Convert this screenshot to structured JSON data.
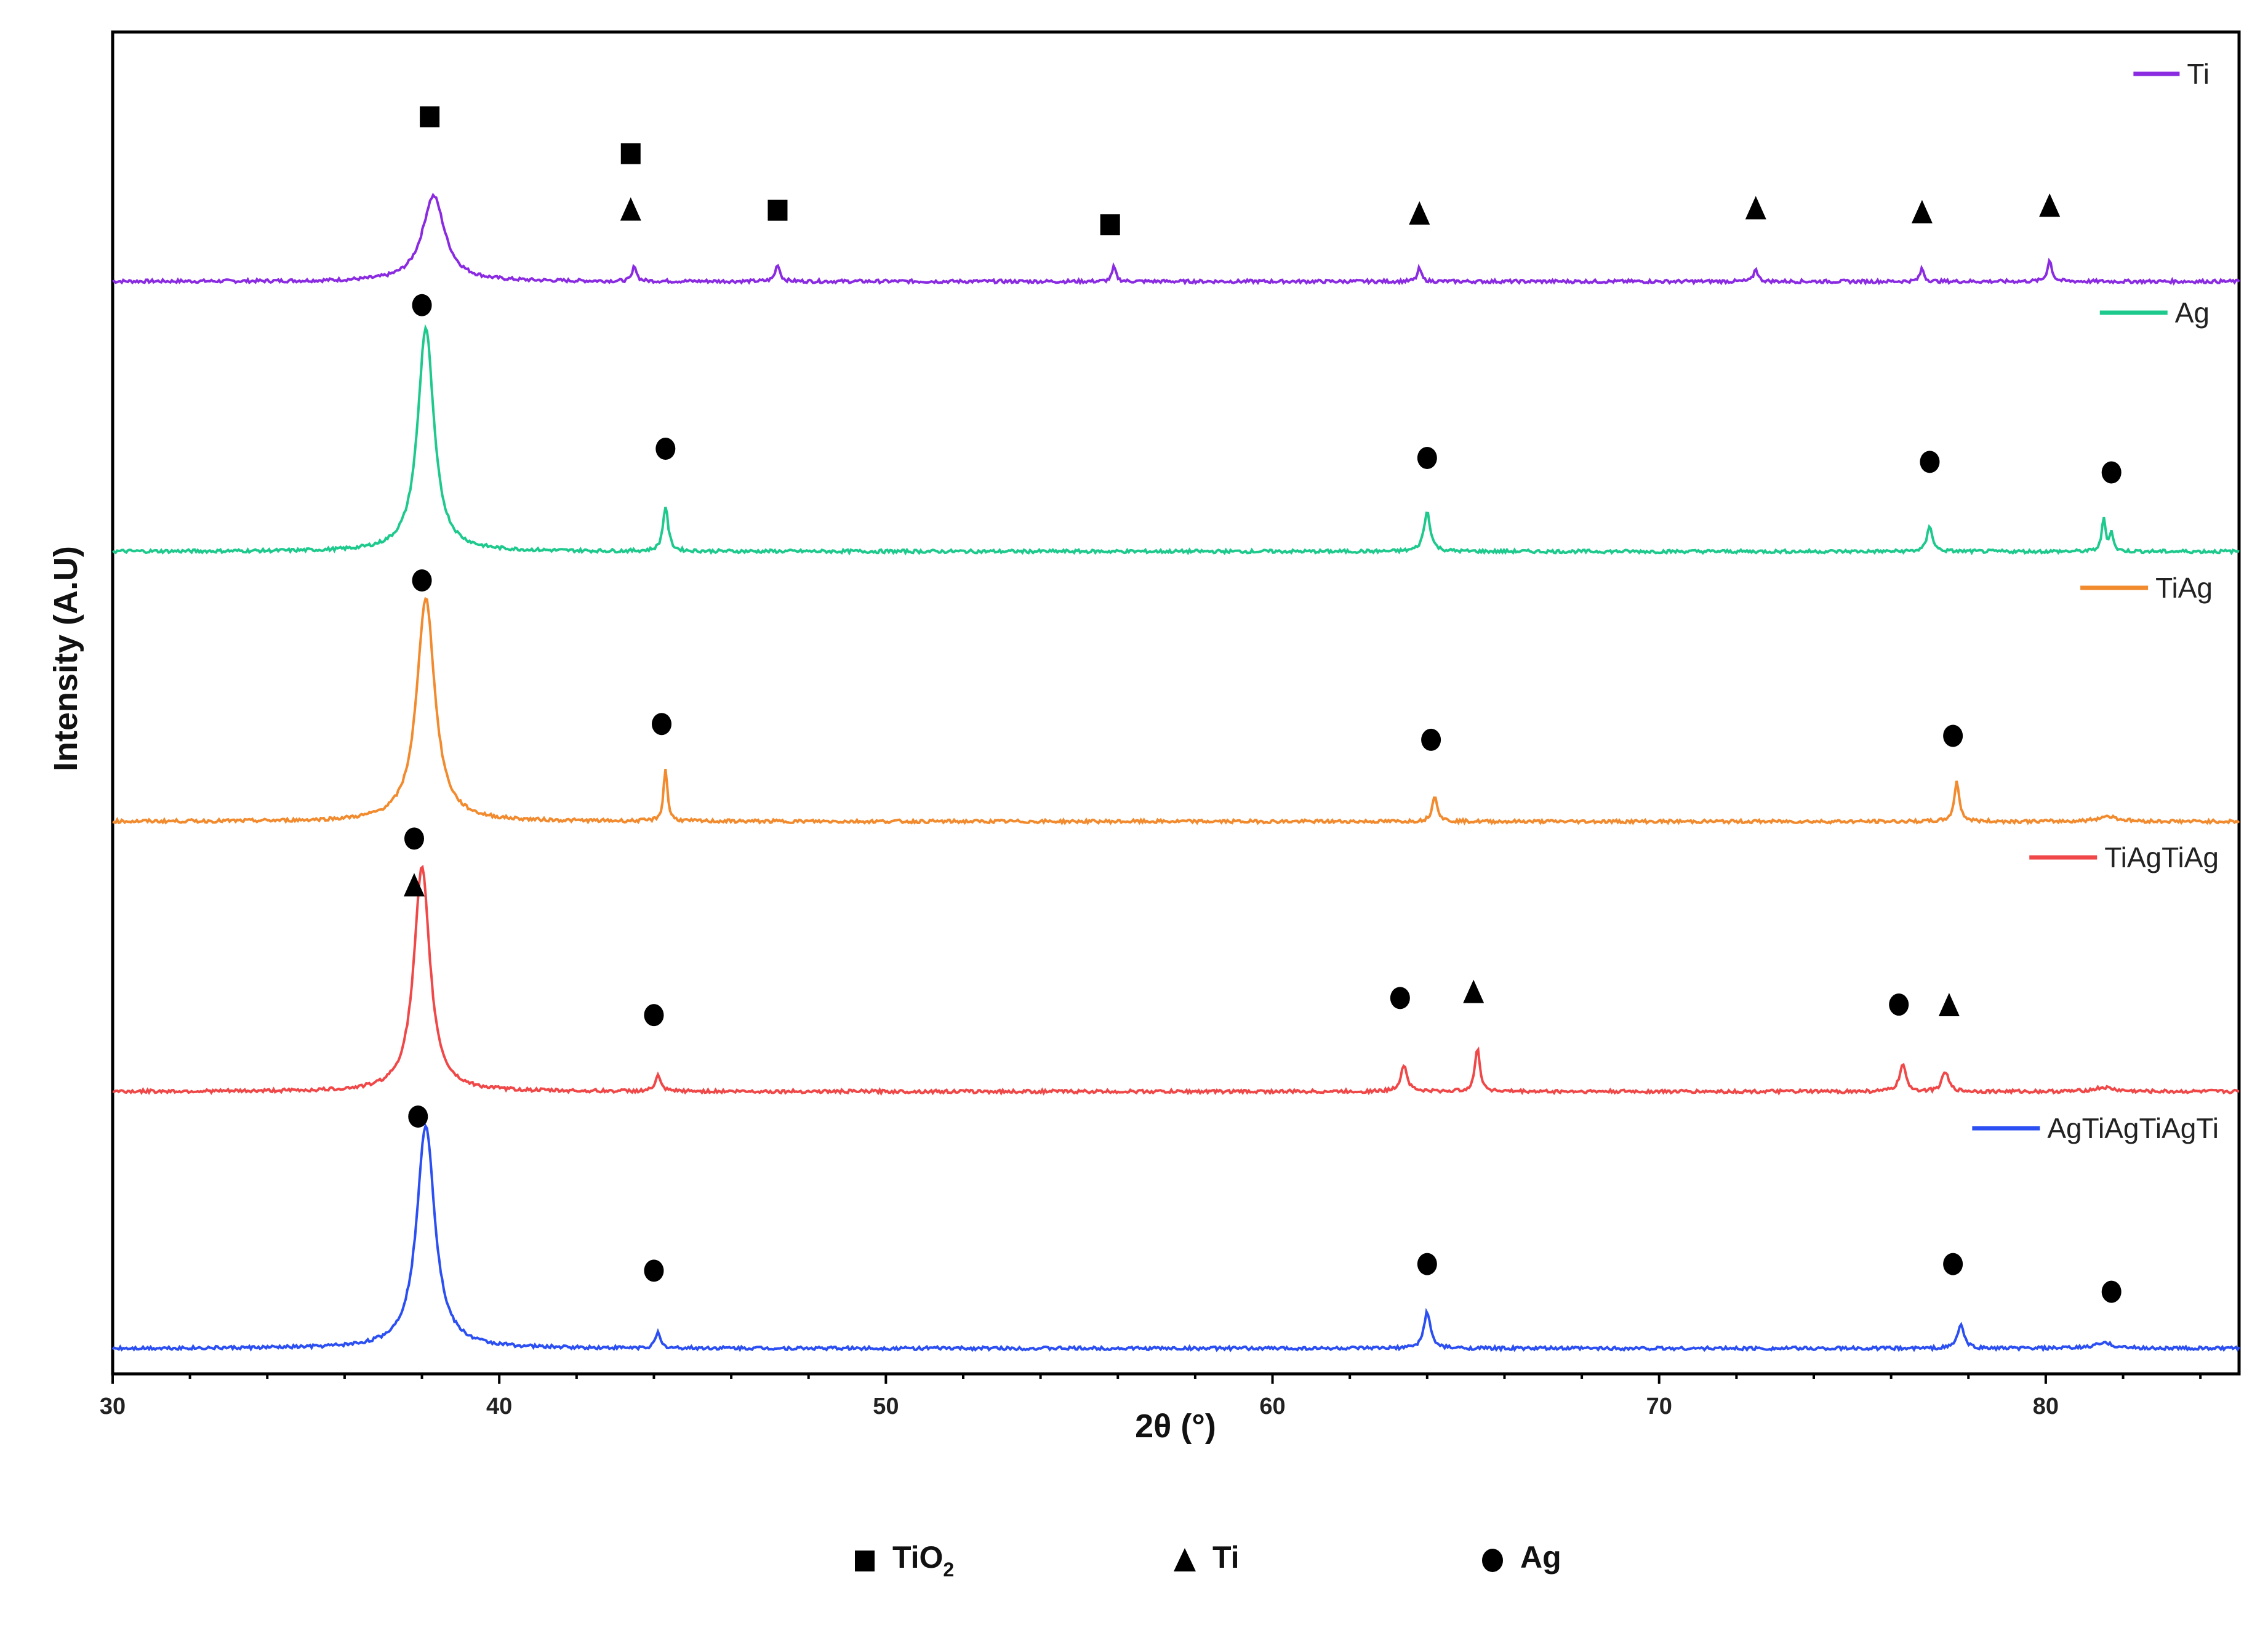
{
  "chart_data": {
    "type": "line",
    "title": "",
    "xlabel": "2θ (°)",
    "ylabel": "Intensity (A.U)",
    "xlim": [
      30,
      85
    ],
    "xticks": [
      30,
      40,
      50,
      60,
      70,
      80
    ],
    "grid": false,
    "legend_position": "right, beside each trace",
    "series": [
      {
        "name": "Ti",
        "color": "#8a2be2",
        "baseline": 0.82,
        "peaks": [
          {
            "x": 38.3,
            "h": 0.065,
            "w": 0.35
          },
          {
            "x": 43.5,
            "h": 0.012,
            "w": 0.06
          },
          {
            "x": 47.2,
            "h": 0.013,
            "w": 0.07
          },
          {
            "x": 55.9,
            "h": 0.011,
            "w": 0.06
          },
          {
            "x": 63.8,
            "h": 0.01,
            "w": 0.06
          },
          {
            "x": 72.5,
            "h": 0.01,
            "w": 0.06
          },
          {
            "x": 76.8,
            "h": 0.01,
            "w": 0.06
          },
          {
            "x": 80.1,
            "h": 0.016,
            "w": 0.07
          }
        ],
        "markers": [
          {
            "x": 38.2,
            "y": 0.945,
            "symbol": "square"
          },
          {
            "x": 43.4,
            "y": 0.917,
            "symbol": "square"
          },
          {
            "x": 43.4,
            "y": 0.875,
            "symbol": "triangle"
          },
          {
            "x": 47.2,
            "y": 0.874,
            "symbol": "square"
          },
          {
            "x": 55.8,
            "y": 0.863,
            "symbol": "square"
          },
          {
            "x": 63.8,
            "y": 0.872,
            "symbol": "triangle"
          },
          {
            "x": 72.5,
            "y": 0.876,
            "symbol": "triangle"
          },
          {
            "x": 76.8,
            "y": 0.873,
            "symbol": "triangle"
          },
          {
            "x": 80.1,
            "y": 0.878,
            "symbol": "triangle"
          }
        ]
      },
      {
        "name": "Ag",
        "color": "#1ec98d",
        "baseline": 0.615,
        "peaks": [
          {
            "x": 38.1,
            "h": 0.17,
            "w": 0.25
          },
          {
            "x": 44.3,
            "h": 0.034,
            "w": 0.08
          },
          {
            "x": 64.0,
            "h": 0.03,
            "w": 0.1
          },
          {
            "x": 77.0,
            "h": 0.02,
            "w": 0.08
          },
          {
            "x": 81.5,
            "h": 0.025,
            "w": 0.06
          },
          {
            "x": 81.7,
            "h": 0.015,
            "w": 0.05
          }
        ],
        "markers": [
          {
            "x": 38.0,
            "y": 0.802,
            "symbol": "circle"
          },
          {
            "x": 44.3,
            "y": 0.693,
            "symbol": "circle"
          },
          {
            "x": 64.0,
            "y": 0.686,
            "symbol": "circle"
          },
          {
            "x": 77.0,
            "y": 0.683,
            "symbol": "circle"
          },
          {
            "x": 81.7,
            "y": 0.675,
            "symbol": "circle"
          }
        ]
      },
      {
        "name": "TiAg",
        "color": "#f28a2e",
        "baseline": 0.41,
        "peaks": [
          {
            "x": 38.1,
            "h": 0.17,
            "w": 0.28
          },
          {
            "x": 44.3,
            "h": 0.04,
            "w": 0.06
          },
          {
            "x": 64.2,
            "h": 0.02,
            "w": 0.08
          },
          {
            "x": 77.7,
            "h": 0.03,
            "w": 0.08
          },
          {
            "x": 81.6,
            "h": 0.004,
            "w": 0.3
          }
        ],
        "markers": [
          {
            "x": 38.0,
            "y": 0.593,
            "symbol": "circle"
          },
          {
            "x": 44.2,
            "y": 0.484,
            "symbol": "circle"
          },
          {
            "x": 64.1,
            "y": 0.472,
            "symbol": "circle"
          },
          {
            "x": 77.6,
            "y": 0.475,
            "symbol": "circle"
          },
          {
            "x": 81.6,
            "y": 0.0,
            "symbol": "none"
          }
        ]
      },
      {
        "name": "TiAgTiAg",
        "color": "#f04848",
        "baseline": 0.205,
        "peaks": [
          {
            "x": 38.0,
            "h": 0.17,
            "w": 0.25
          },
          {
            "x": 44.1,
            "h": 0.012,
            "w": 0.08
          },
          {
            "x": 63.4,
            "h": 0.02,
            "w": 0.1
          },
          {
            "x": 65.3,
            "h": 0.032,
            "w": 0.08
          },
          {
            "x": 76.3,
            "h": 0.02,
            "w": 0.1
          },
          {
            "x": 77.4,
            "h": 0.015,
            "w": 0.1
          },
          {
            "x": 81.5,
            "h": 0.003,
            "w": 0.3
          }
        ],
        "markers": [
          {
            "x": 37.8,
            "y": 0.397,
            "symbol": "circle"
          },
          {
            "x": 37.8,
            "y": 0.362,
            "symbol": "triangle"
          },
          {
            "x": 44.0,
            "y": 0.263,
            "symbol": "circle"
          },
          {
            "x": 63.3,
            "y": 0.276,
            "symbol": "circle"
          },
          {
            "x": 65.2,
            "y": 0.281,
            "symbol": "triangle"
          },
          {
            "x": 76.2,
            "y": 0.271,
            "symbol": "circle"
          },
          {
            "x": 77.5,
            "y": 0.271,
            "symbol": "triangle"
          }
        ]
      },
      {
        "name": "AgTiAgTiAgTi",
        "color": "#2b4ff2",
        "baseline": 0.01,
        "peaks": [
          {
            "x": 38.1,
            "h": 0.17,
            "w": 0.28
          },
          {
            "x": 44.1,
            "h": 0.012,
            "w": 0.07
          },
          {
            "x": 64.0,
            "h": 0.028,
            "w": 0.1
          },
          {
            "x": 77.8,
            "h": 0.018,
            "w": 0.1
          },
          {
            "x": 81.5,
            "h": 0.004,
            "w": 0.3
          }
        ],
        "markers": [
          {
            "x": 37.9,
            "y": 0.186,
            "symbol": "circle"
          },
          {
            "x": 44.0,
            "y": 0.069,
            "symbol": "circle"
          },
          {
            "x": 64.0,
            "y": 0.074,
            "symbol": "circle"
          },
          {
            "x": 77.6,
            "y": 0.074,
            "symbol": "circle"
          },
          {
            "x": 81.7,
            "y": 0.053,
            "symbol": "circle"
          }
        ]
      }
    ],
    "symbol_key": [
      {
        "symbol": "square",
        "label": "TiO",
        "subscript": "2"
      },
      {
        "symbol": "triangle",
        "label": "Ti",
        "subscript": ""
      },
      {
        "symbol": "circle",
        "label": "Ag",
        "subscript": ""
      }
    ]
  }
}
